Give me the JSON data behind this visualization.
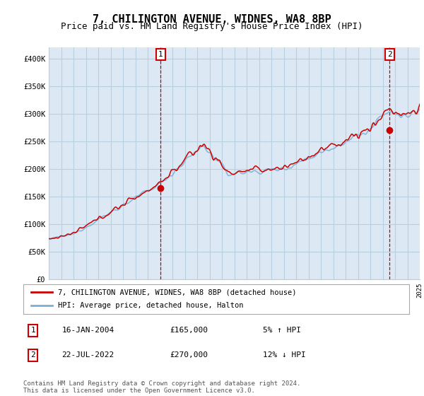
{
  "title": "7, CHILINGTON AVENUE, WIDNES, WA8 8BP",
  "subtitle": "Price paid vs. HM Land Registry's House Price Index (HPI)",
  "ylim": [
    0,
    420000
  ],
  "yticks": [
    0,
    50000,
    100000,
    150000,
    200000,
    250000,
    300000,
    350000,
    400000
  ],
  "ytick_labels": [
    "£0",
    "£50K",
    "£100K",
    "£150K",
    "£200K",
    "£250K",
    "£300K",
    "£350K",
    "£400K"
  ],
  "sale1_date": "16-JAN-2004",
  "sale1_price": 165000,
  "sale1_hpi_pct": "5% ↑ HPI",
  "sale1_x": 2004.04,
  "sale2_date": "22-JUL-2022",
  "sale2_price": 270000,
  "sale2_hpi_pct": "12% ↓ HPI",
  "sale2_x": 2022.55,
  "legend_label1": "7, CHILINGTON AVENUE, WIDNES, WA8 8BP (detached house)",
  "legend_label2": "HPI: Average price, detached house, Halton",
  "annotation1": "1",
  "annotation2": "2",
  "line1_color": "#cc0000",
  "line2_color": "#7bafd4",
  "plot_bg_color": "#dce9f5",
  "vline_color": "#cc0000",
  "dot_color": "#cc0000",
  "grid_color": "#b8cfe0",
  "bg_color": "#ffffff",
  "footer": "Contains HM Land Registry data © Crown copyright and database right 2024.\nThis data is licensed under the Open Government Licence v3.0.",
  "title_fontsize": 11,
  "subtitle_fontsize": 9
}
